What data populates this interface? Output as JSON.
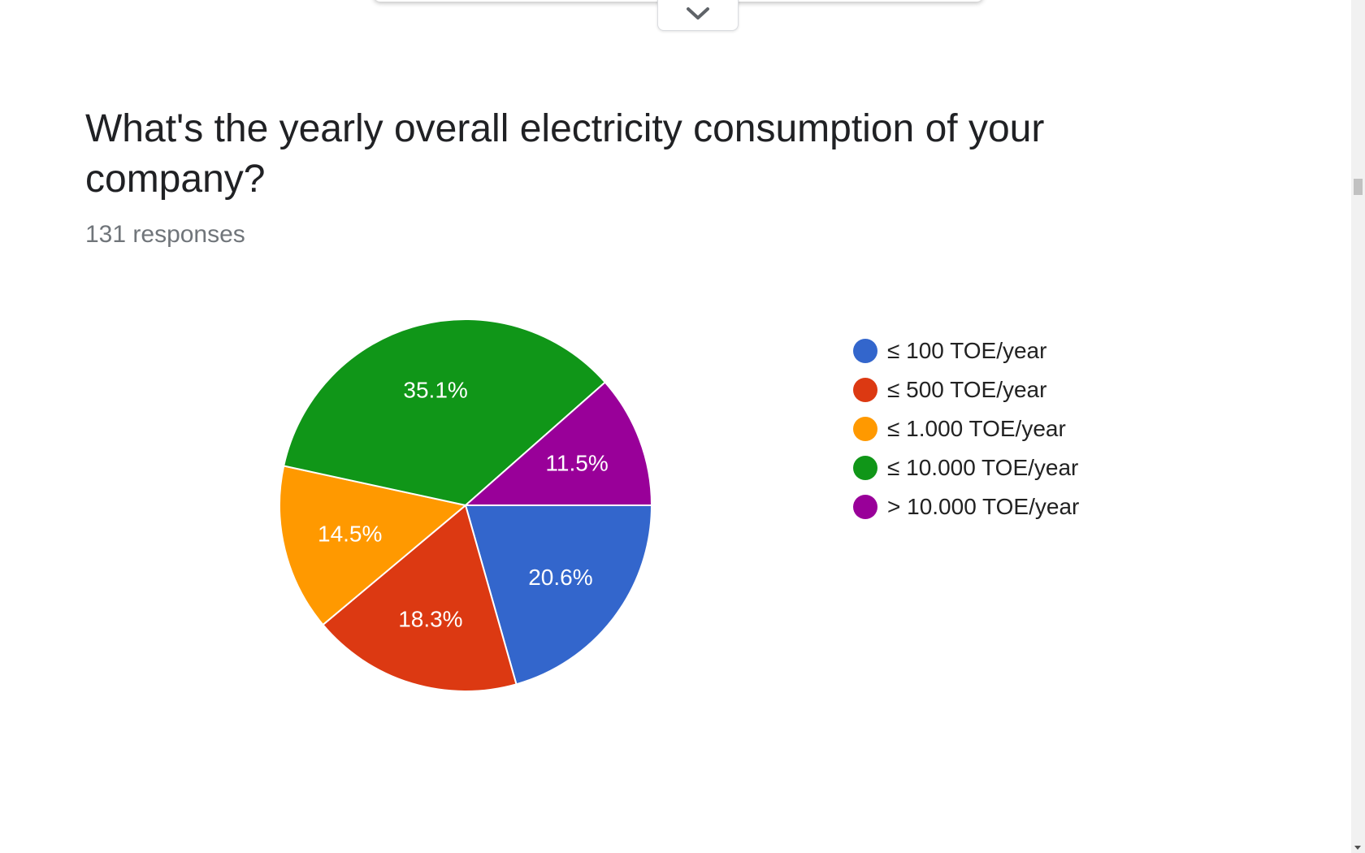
{
  "question": {
    "title": "What's the yearly overall electricity consumption of your company?",
    "responses": "131 responses"
  },
  "toolbar": {
    "collapse_icon": "chevron-down-icon"
  },
  "colors": {
    "blue": "#3366cc",
    "red": "#dc3912",
    "orange": "#ff9900",
    "green": "#109618",
    "purple": "#990099"
  },
  "chart_data": {
    "type": "pie",
    "categories": [
      "≤ 100 TOE/year",
      "≤ 500 TOE/year",
      "≤ 1.000 TOE/year",
      "≤ 10.000 TOE/year",
      "> 10.000 TOE/year"
    ],
    "values": [
      20.6,
      18.3,
      14.5,
      35.1,
      11.5
    ],
    "data_labels": [
      "20.6%",
      "18.3%",
      "14.5%",
      "35.1%",
      "11.5%"
    ],
    "colors": [
      "#3366cc",
      "#dc3912",
      "#ff9900",
      "#109618",
      "#990099"
    ],
    "legend_position": "right"
  }
}
